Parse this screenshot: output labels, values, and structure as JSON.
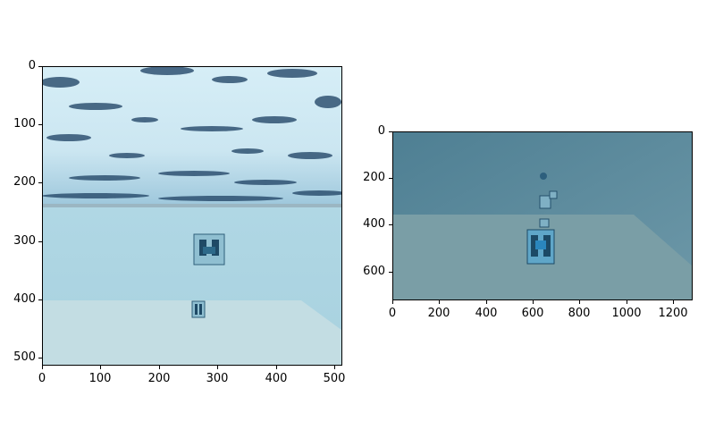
{
  "figure": {
    "panels": [
      {
        "id": "left",
        "image_content": "camera frame (512x512): icy textured ceiling above a pale water volume, underwater robot visible at center",
        "x_ticks": [
          "0",
          "100",
          "200",
          "300",
          "400",
          "500"
        ],
        "y_ticks": [
          "0",
          "100",
          "200",
          "300",
          "400",
          "500"
        ],
        "xlim": [
          0,
          512
        ],
        "ylim": [
          512,
          0
        ]
      },
      {
        "id": "right",
        "image_content": "camera frame (1280x720): murky teal water, several small robots and a larger robot near the seabed",
        "x_ticks": [
          "0",
          "200",
          "400",
          "600",
          "800",
          "1000",
          "1200"
        ],
        "y_ticks": [
          "0",
          "200",
          "400",
          "600"
        ],
        "xlim": [
          0,
          1280
        ],
        "ylim": [
          720,
          0
        ]
      }
    ],
    "colors": {
      "ice_dark": "#1b3a5a",
      "ice_light": "#cfe9f4",
      "water_left": "#a9d6e6",
      "water_right": "#5c8fa3",
      "seabed_right": "#7a9ea6"
    }
  }
}
